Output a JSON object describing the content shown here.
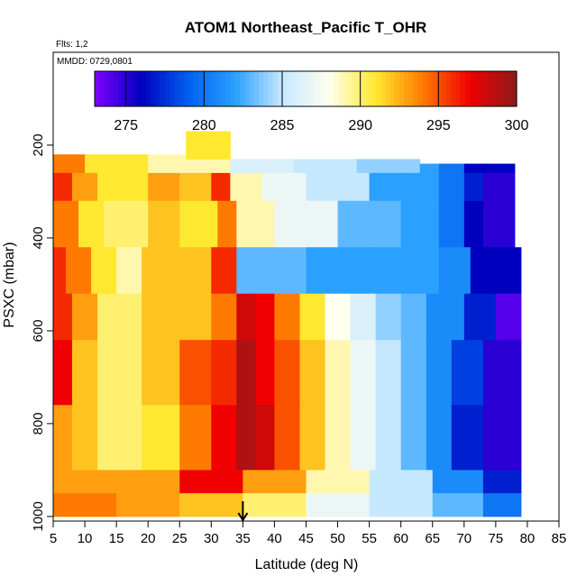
{
  "chart_data": {
    "type": "heatmap",
    "title": "ATOM1 Northeast_Pacific T_OHR",
    "flights_note": "Flts: 1,2",
    "date_note": "MMDD: 0729,0801",
    "xlabel": "Latitude (deg N)",
    "ylabel": "PSXC (mbar)",
    "xlim": [
      5,
      85
    ],
    "ylim": [
      1010,
      0
    ],
    "x_ticks": [
      "5",
      "10",
      "15",
      "20",
      "25",
      "30",
      "35",
      "40",
      "45",
      "50",
      "55",
      "60",
      "65",
      "70",
      "75",
      "80",
      "85"
    ],
    "y_ticks": [
      "200",
      "400",
      "600",
      "800",
      "1000"
    ],
    "y_reversed": true,
    "colorbar": {
      "range": [
        273,
        300
      ],
      "ticks": [
        "275",
        "280",
        "285",
        "290",
        "295",
        "300"
      ],
      "placement": "top"
    },
    "marker": {
      "x": 35,
      "shape": "arrow"
    },
    "colors": {
      "scale": [
        "#7f00ff",
        "#0000bf",
        "#0060f0",
        "#2aa0ff",
        "#c6e8ff",
        "#fffff0",
        "#ffe830",
        "#ff7a00",
        "#f00000",
        "#8c1a1a"
      ]
    },
    "description_of_values": "T_OHR in K, pressure on y axis",
    "cells": [
      [
        5,
        10,
        220,
        260,
        294
      ],
      [
        10,
        20,
        220,
        260,
        291
      ],
      [
        20,
        33,
        220,
        260,
        289
      ],
      [
        33,
        43,
        230,
        260,
        286
      ],
      [
        43,
        53,
        230,
        260,
        285
      ],
      [
        53,
        63,
        230,
        260,
        284
      ],
      [
        63,
        66,
        240,
        260,
        282
      ],
      [
        66,
        70,
        240,
        260,
        280
      ],
      [
        70,
        73,
        240,
        260,
        276
      ],
      [
        73,
        78,
        240,
        260,
        276
      ],
      [
        26,
        33,
        170,
        230,
        291
      ],
      [
        5,
        8,
        260,
        320,
        296
      ],
      [
        8,
        12,
        260,
        320,
        293
      ],
      [
        12,
        20,
        260,
        320,
        291
      ],
      [
        20,
        25,
        260,
        320,
        293
      ],
      [
        25,
        30,
        260,
        320,
        292
      ],
      [
        30,
        33,
        260,
        320,
        296
      ],
      [
        33,
        38,
        260,
        320,
        289
      ],
      [
        38,
        45,
        260,
        320,
        287
      ],
      [
        45,
        55,
        260,
        320,
        285
      ],
      [
        55,
        61,
        260,
        320,
        282
      ],
      [
        61,
        66,
        260,
        320,
        282
      ],
      [
        66,
        70,
        260,
        320,
        280
      ],
      [
        70,
        73,
        260,
        320,
        277
      ],
      [
        73,
        78,
        260,
        320,
        275
      ],
      [
        5,
        9,
        320,
        420,
        294
      ],
      [
        9,
        13,
        320,
        420,
        291
      ],
      [
        13,
        20,
        320,
        420,
        290
      ],
      [
        20,
        25,
        320,
        420,
        292
      ],
      [
        25,
        31,
        320,
        420,
        291
      ],
      [
        31,
        34,
        320,
        420,
        294
      ],
      [
        34,
        40,
        320,
        420,
        289
      ],
      [
        40,
        50,
        320,
        420,
        287
      ],
      [
        50,
        60,
        320,
        420,
        283
      ],
      [
        60,
        66,
        320,
        420,
        282
      ],
      [
        66,
        70,
        320,
        420,
        280
      ],
      [
        70,
        73,
        320,
        420,
        276
      ],
      [
        73,
        78,
        320,
        420,
        275
      ],
      [
        5,
        7,
        420,
        520,
        296
      ],
      [
        7,
        11,
        420,
        520,
        294
      ],
      [
        11,
        15,
        420,
        520,
        291
      ],
      [
        15,
        19,
        420,
        520,
        289
      ],
      [
        19,
        25,
        420,
        520,
        292
      ],
      [
        25,
        30,
        420,
        520,
        292
      ],
      [
        30,
        34,
        420,
        520,
        296
      ],
      [
        34,
        45,
        420,
        520,
        283
      ],
      [
        45,
        55,
        420,
        520,
        282
      ],
      [
        55,
        66,
        420,
        520,
        282
      ],
      [
        66,
        71,
        420,
        520,
        281
      ],
      [
        71,
        79,
        420,
        520,
        276
      ],
      [
        5,
        8,
        520,
        620,
        296
      ],
      [
        8,
        12,
        520,
        620,
        293
      ],
      [
        12,
        19,
        520,
        620,
        290
      ],
      [
        19,
        25,
        520,
        620,
        292
      ],
      [
        25,
        30,
        520,
        620,
        292
      ],
      [
        30,
        34,
        520,
        620,
        294
      ],
      [
        34,
        37,
        520,
        620,
        298
      ],
      [
        37,
        40,
        520,
        620,
        297
      ],
      [
        40,
        44,
        520,
        620,
        294
      ],
      [
        44,
        48,
        520,
        620,
        291
      ],
      [
        48,
        52,
        520,
        620,
        288
      ],
      [
        52,
        56,
        520,
        620,
        286
      ],
      [
        56,
        60,
        520,
        620,
        284
      ],
      [
        60,
        64,
        520,
        620,
        283
      ],
      [
        64,
        70,
        520,
        620,
        281
      ],
      [
        70,
        75,
        520,
        620,
        277
      ],
      [
        75,
        79,
        520,
        620,
        274
      ],
      [
        5,
        8,
        620,
        760,
        297
      ],
      [
        8,
        12,
        620,
        760,
        292
      ],
      [
        12,
        19,
        620,
        760,
        290
      ],
      [
        19,
        25,
        620,
        760,
        292
      ],
      [
        25,
        30,
        620,
        760,
        295
      ],
      [
        30,
        34,
        620,
        760,
        296
      ],
      [
        34,
        37,
        620,
        760,
        299
      ],
      [
        37,
        40,
        620,
        760,
        297
      ],
      [
        40,
        44,
        620,
        760,
        295
      ],
      [
        44,
        48,
        620,
        760,
        292
      ],
      [
        48,
        52,
        620,
        760,
        289
      ],
      [
        52,
        56,
        620,
        760,
        287
      ],
      [
        56,
        60,
        620,
        760,
        285
      ],
      [
        60,
        64,
        620,
        760,
        283
      ],
      [
        64,
        68,
        620,
        760,
        281
      ],
      [
        68,
        73,
        620,
        760,
        278
      ],
      [
        73,
        79,
        620,
        760,
        275
      ],
      [
        5,
        8,
        760,
        900,
        293
      ],
      [
        8,
        12,
        760,
        900,
        292
      ],
      [
        12,
        19,
        760,
        900,
        290
      ],
      [
        19,
        25,
        760,
        900,
        291
      ],
      [
        25,
        30,
        760,
        900,
        294
      ],
      [
        30,
        34,
        760,
        900,
        297
      ],
      [
        34,
        37,
        760,
        900,
        299
      ],
      [
        37,
        40,
        760,
        900,
        298
      ],
      [
        40,
        44,
        760,
        900,
        295
      ],
      [
        44,
        48,
        760,
        900,
        292
      ],
      [
        48,
        52,
        760,
        900,
        289
      ],
      [
        52,
        56,
        760,
        900,
        287
      ],
      [
        56,
        60,
        760,
        900,
        285
      ],
      [
        60,
        64,
        760,
        900,
        283
      ],
      [
        64,
        68,
        760,
        900,
        281
      ],
      [
        68,
        73,
        760,
        900,
        277
      ],
      [
        73,
        79,
        760,
        900,
        275
      ],
      [
        5,
        25,
        900,
        950,
        293
      ],
      [
        25,
        35,
        900,
        950,
        297
      ],
      [
        35,
        45,
        900,
        950,
        293
      ],
      [
        45,
        55,
        900,
        950,
        289
      ],
      [
        55,
        65,
        900,
        950,
        285
      ],
      [
        65,
        73,
        900,
        950,
        281
      ],
      [
        73,
        79,
        900,
        950,
        277
      ],
      [
        5,
        15,
        950,
        1000,
        294
      ],
      [
        15,
        25,
        950,
        1000,
        293
      ],
      [
        25,
        35,
        950,
        1000,
        292
      ],
      [
        35,
        45,
        950,
        1000,
        290
      ],
      [
        45,
        55,
        950,
        1000,
        287
      ],
      [
        55,
        65,
        950,
        1000,
        285
      ],
      [
        65,
        73,
        950,
        1000,
        283
      ],
      [
        73,
        79,
        950,
        1000,
        280
      ]
    ]
  }
}
